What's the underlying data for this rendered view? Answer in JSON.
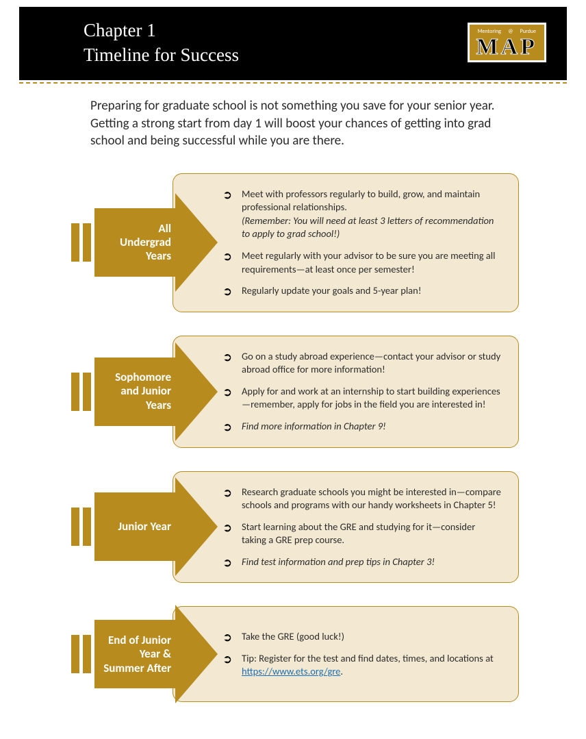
{
  "colors": {
    "brand": "#b78b1e",
    "header_bg": "#000000",
    "content_bg": "#f3e9d2",
    "text": "#2b2b2b",
    "link": "#1a6fb5"
  },
  "header": {
    "chapter": "Chapter 1",
    "title": "Timeline for Success",
    "logo": {
      "top_left": "Mentoring",
      "top_mid": "@",
      "top_right": "Purdue",
      "main": "MAP"
    }
  },
  "intro": "Preparing for graduate school is not something you save for your senior year. Getting a strong start from day 1 will boost your chances of getting into grad school and being successful while you are there.",
  "sections": [
    {
      "label": "All Undergrad Years",
      "items": [
        {
          "text": "Meet with professors regularly to build, grow, and maintain professional relationships.",
          "note_italic": "(Remember: You will need at least 3 letters of recommendation to apply to grad school!)"
        },
        {
          "text": "Meet regularly with your advisor to be sure you are meeting all requirements—at least once per semester!"
        },
        {
          "text": "Regularly update your goals and 5-year plan!"
        }
      ]
    },
    {
      "label": "Sophomore and Junior Years",
      "items": [
        {
          "text": "Go on a study abroad experience—contact your advisor or study abroad office for more information!"
        },
        {
          "text": "Apply for and work at an internship to start building experiences—remember, apply for jobs in the field you are interested in!"
        },
        {
          "text_italic": "Find more information in Chapter 9!"
        }
      ]
    },
    {
      "label": "Junior Year",
      "items": [
        {
          "text": "Research graduate schools you might be interested in—compare schools and programs with our handy worksheets in Chapter 5!"
        },
        {
          "text": "Start learning about the GRE and studying for it—consider taking a GRE prep course."
        },
        {
          "text_italic": "Find test information and prep tips in Chapter 3!"
        }
      ]
    },
    {
      "label": "End of Junior Year & Summer After",
      "items": [
        {
          "text": "Take the GRE (good luck!)"
        },
        {
          "text": "Tip: Register for the test and find dates, times, and locations at ",
          "link_text": "https://www.ets.org/gre",
          "link_href": "https://www.ets.org/gre",
          "suffix": "."
        }
      ]
    }
  ]
}
